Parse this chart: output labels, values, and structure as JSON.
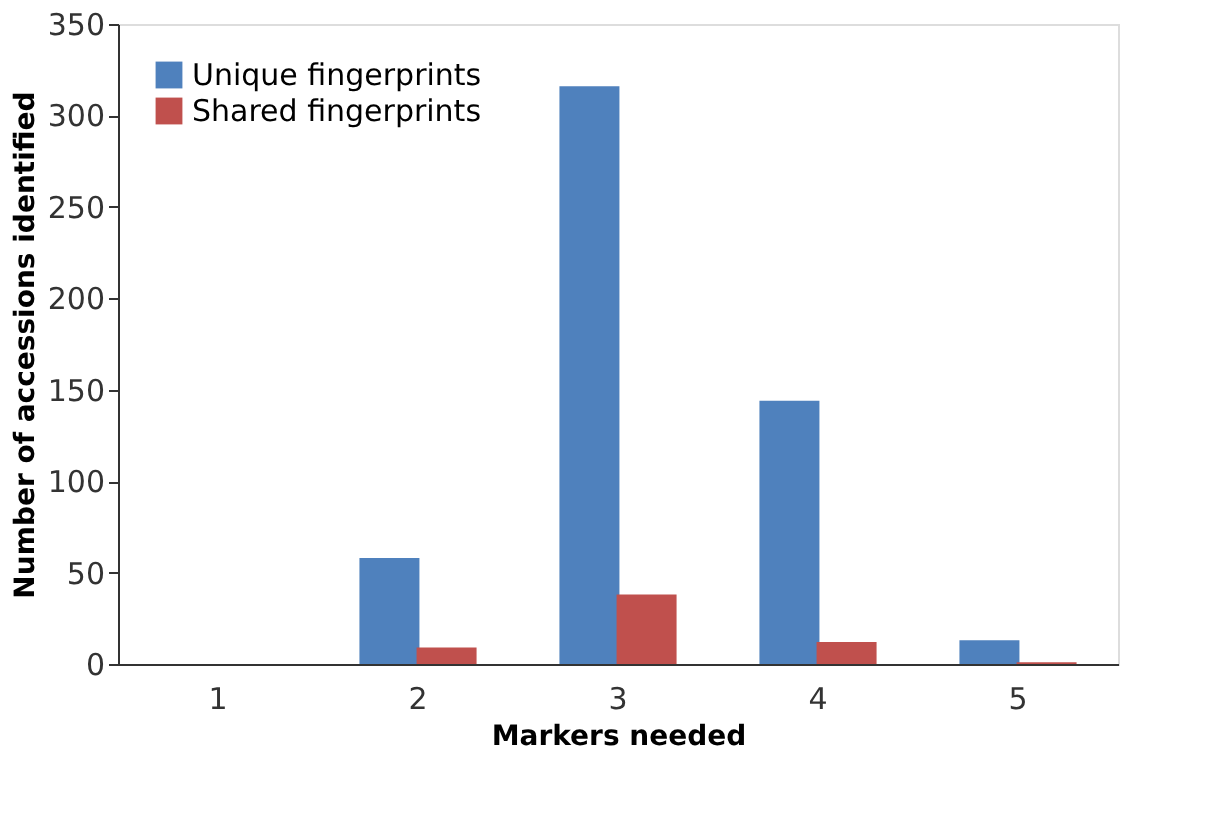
{
  "chart_data": {
    "type": "bar",
    "xlabel": "Markers needed",
    "ylabel": "Number of accessions identified",
    "categories": [
      "1",
      "2",
      "3",
      "4",
      "5"
    ],
    "series": [
      {
        "name": "Unique  fingerprints",
        "color": "#4f81bd",
        "values": [
          0,
          58,
          316,
          144,
          13
        ]
      },
      {
        "name": "Shared  fingerprints",
        "color": "#c0504d",
        "values": [
          0,
          9,
          38,
          12,
          1
        ]
      }
    ],
    "ylim": [
      0,
      350
    ],
    "yticks": [
      0,
      50,
      100,
      150,
      200,
      250,
      300,
      350
    ],
    "grid": false,
    "legend": "top left"
  }
}
